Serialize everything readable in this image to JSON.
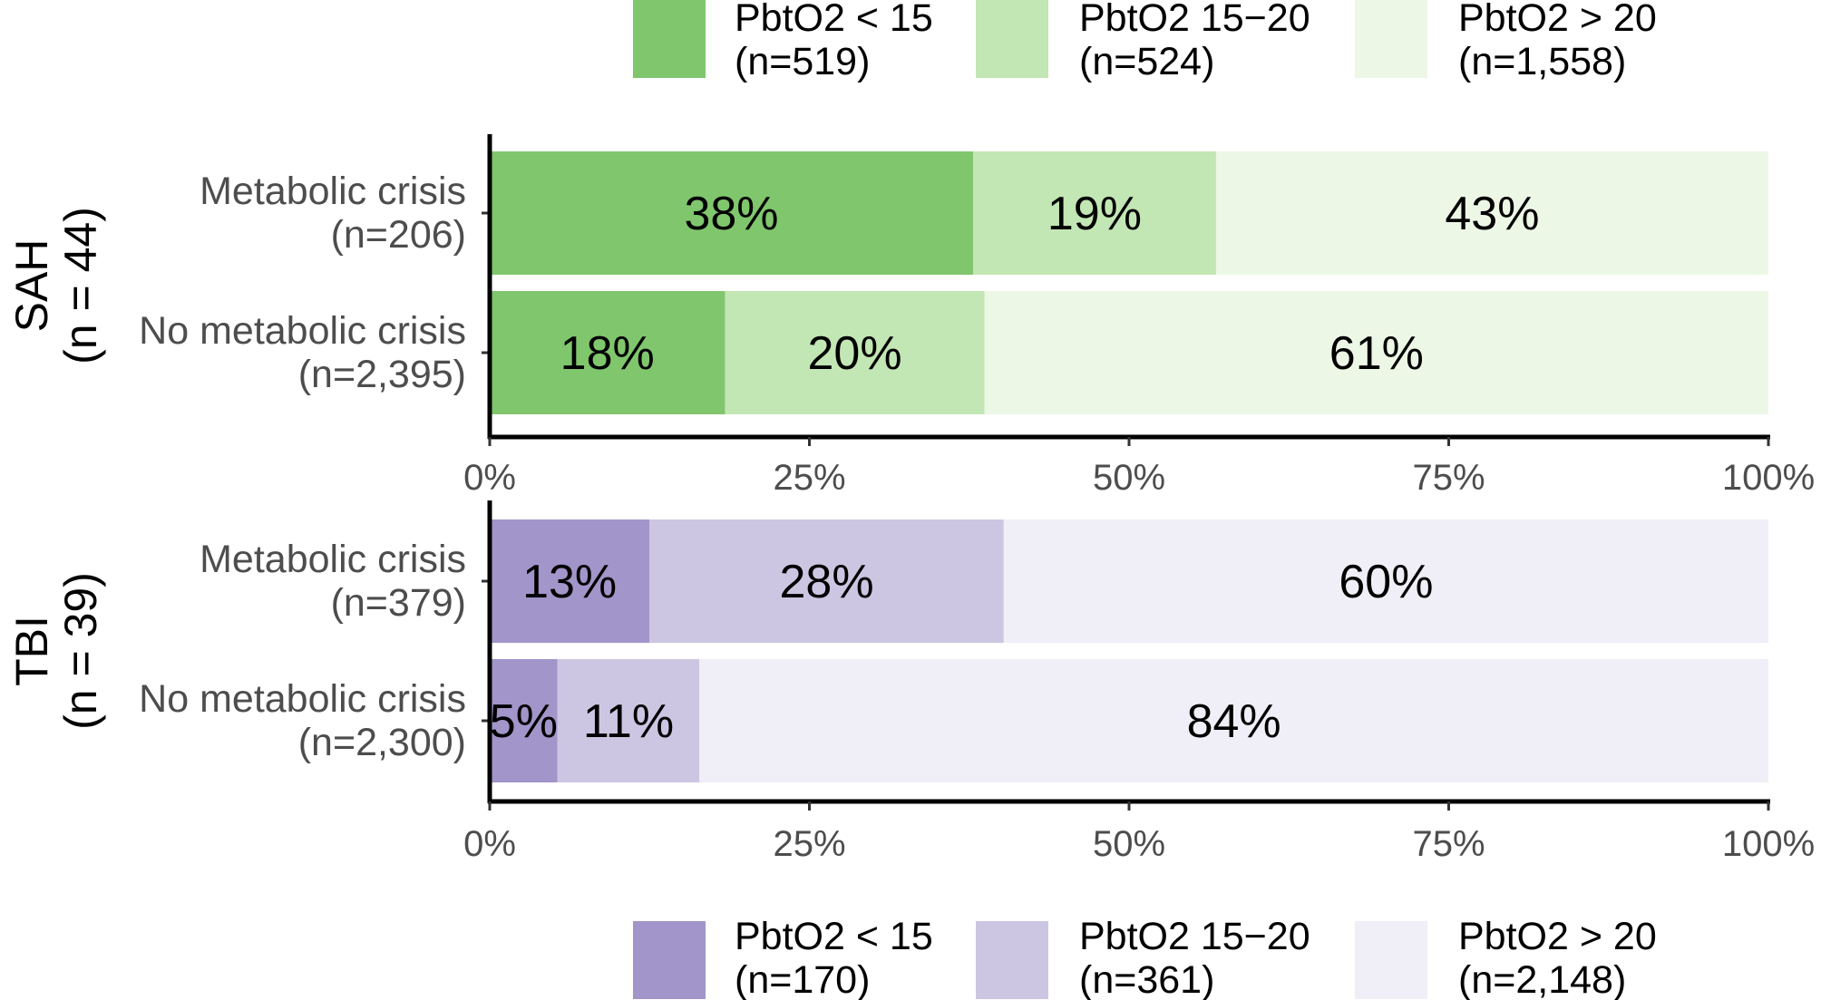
{
  "chart_data": {
    "type": "bar",
    "orientation": "horizontal",
    "stacked": true,
    "xlim": [
      0,
      100
    ],
    "x_ticks": [
      "0%",
      "25%",
      "50%",
      "75%",
      "100%"
    ],
    "grid": false,
    "panels": [
      {
        "strip_label": [
          "SAH",
          "(n = 44)"
        ],
        "legend_position": "top",
        "legend": [
          {
            "name": [
              "PbtO2 < 15",
              "(n=519)"
            ],
            "color": "#80c66d"
          },
          {
            "name": [
              "PbtO2 15−20",
              "(n=524)"
            ],
            "color": "#c2e6b4"
          },
          {
            "name": [
              "PbtO2 > 20",
              "(n=1,558)"
            ],
            "color": "#edf7e6"
          }
        ],
        "categories": [
          [
            "Metabolic crisis",
            "(n=206)"
          ],
          [
            "No metabolic crisis",
            "(n=2,395)"
          ]
        ],
        "series": [
          {
            "name": "PbtO2 < 15",
            "values": [
              37.8,
              18.4
            ],
            "labels": [
              "38%",
              "18%"
            ]
          },
          {
            "name": "PbtO2 15−20",
            "values": [
              19.0,
              20.3
            ],
            "labels": [
              "19%",
              "20%"
            ]
          },
          {
            "name": "PbtO2 > 20",
            "values": [
              43.2,
              61.3
            ],
            "labels": [
              "43%",
              "61%"
            ]
          }
        ]
      },
      {
        "strip_label": [
          "TBI",
          "(n = 39)"
        ],
        "legend_position": "bottom",
        "legend": [
          {
            "name": [
              "PbtO2 < 15",
              "(n=170)"
            ],
            "color": "#a195c9"
          },
          {
            "name": [
              "PbtO2 15−20",
              "(n=361)"
            ],
            "color": "#ccc6e2"
          },
          {
            "name": [
              "PbtO2 > 20",
              "(n=2,148)"
            ],
            "color": "#f0eef6"
          }
        ],
        "categories": [
          [
            "Metabolic crisis",
            "(n=379)"
          ],
          [
            "No metabolic crisis",
            "(n=2,300)"
          ]
        ],
        "series": [
          {
            "name": "PbtO2 < 15",
            "values": [
              12.5,
              5.3
            ],
            "labels": [
              "13%",
              "5%"
            ]
          },
          {
            "name": "PbtO2 15−20",
            "values": [
              27.7,
              11.1
            ],
            "labels": [
              "28%",
              "11%"
            ]
          },
          {
            "name": "PbtO2 > 20",
            "values": [
              59.8,
              83.6
            ],
            "labels": [
              "60%",
              "84%"
            ]
          }
        ]
      }
    ]
  }
}
